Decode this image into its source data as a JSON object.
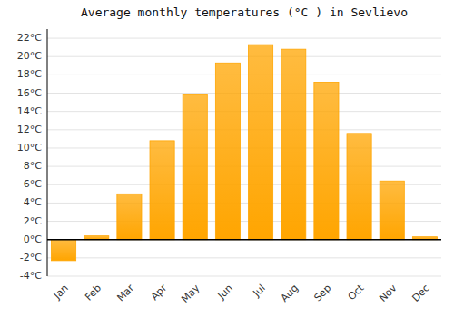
{
  "chart_data": {
    "type": "bar",
    "title": "Average monthly temperatures (°C ) in Sevlievo",
    "categories": [
      "Jan",
      "Feb",
      "Mar",
      "Apr",
      "May",
      "Jun",
      "Jul",
      "Aug",
      "Sep",
      "Oct",
      "Nov",
      "Dec"
    ],
    "values": [
      -2.3,
      0.4,
      5.0,
      10.8,
      15.8,
      19.3,
      21.3,
      20.8,
      17.2,
      11.6,
      6.4,
      0.3
    ],
    "color": "#FFA500",
    "ylim": [
      -4,
      23
    ],
    "yticks": [
      {
        "value": -4,
        "label": "-4°C"
      },
      {
        "value": -2,
        "label": "-2°C"
      },
      {
        "value": 0,
        "label": "0°C"
      },
      {
        "value": 2,
        "label": "2°C"
      },
      {
        "value": 4,
        "label": "4°C"
      },
      {
        "value": 6,
        "label": "6°C"
      },
      {
        "value": 8,
        "label": "8°C"
      },
      {
        "value": 10,
        "label": "10°C"
      },
      {
        "value": 12,
        "label": "12°C"
      },
      {
        "value": 14,
        "label": "14°C"
      },
      {
        "value": 16,
        "label": "16°C"
      },
      {
        "value": 18,
        "label": "18°C"
      },
      {
        "value": 20,
        "label": "20°C"
      },
      {
        "value": 22,
        "label": "22°C"
      }
    ],
    "grid": true
  }
}
